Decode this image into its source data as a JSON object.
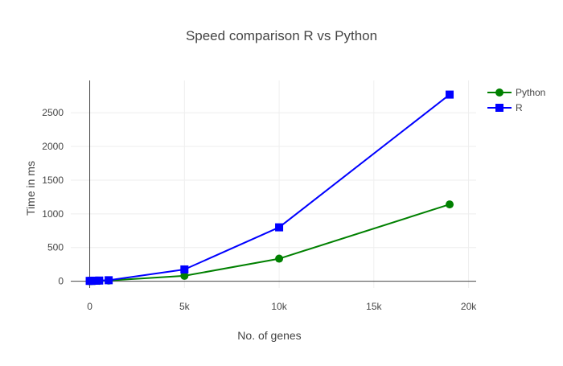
{
  "chart_data": {
    "type": "line",
    "title": "Speed comparison R vs Python",
    "xlabel": "No. of genes",
    "ylabel": "Time in ms",
    "xlim": [
      -1000,
      20400
    ],
    "ylim": [
      -100,
      2980
    ],
    "x_ticks": [
      0,
      5000,
      10000,
      15000,
      20000
    ],
    "x_tick_labels": [
      "0",
      "5k",
      "10k",
      "15k",
      "20k"
    ],
    "y_ticks": [
      0,
      500,
      1000,
      1500,
      2000,
      2500
    ],
    "y_tick_labels": [
      "0",
      "500",
      "1000",
      "1500",
      "2000",
      "2500"
    ],
    "grid": true,
    "legend_position": "top-right",
    "series": [
      {
        "name": "Python",
        "color": "#008000",
        "marker": "circle",
        "x": [
          0,
          100,
          250,
          500,
          1000,
          5000,
          10000,
          19000
        ],
        "y": [
          2,
          3,
          4,
          6,
          10,
          80,
          335,
          1140
        ]
      },
      {
        "name": "R",
        "color": "#0000ff",
        "marker": "square",
        "x": [
          0,
          100,
          250,
          500,
          1000,
          5000,
          10000,
          19000
        ],
        "y": [
          5,
          6,
          8,
          10,
          15,
          175,
          800,
          2770
        ]
      }
    ]
  }
}
